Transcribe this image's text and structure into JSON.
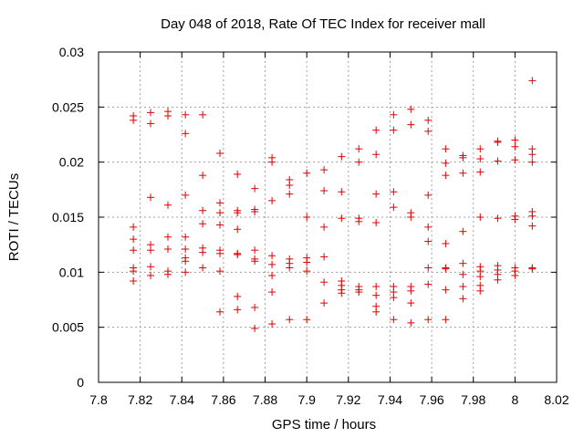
{
  "chart_data": {
    "type": "scatter",
    "title": "Day 048 of 2018, Rate Of TEC Index for receiver mall",
    "xlabel": "GPS time / hours",
    "ylabel": "ROTI / TECUs",
    "xlim": [
      7.8,
      8.02
    ],
    "ylim": [
      0,
      0.03
    ],
    "xticks": [
      7.8,
      7.82,
      7.84,
      7.86,
      7.88,
      7.9,
      7.92,
      7.94,
      7.96,
      7.98,
      8,
      8.02
    ],
    "xtick_labels": [
      "7.8",
      "7.82",
      "7.84",
      "7.86",
      "7.88",
      "7.9",
      "7.92",
      "7.94",
      "7.96",
      "7.98",
      "8",
      "8.02"
    ],
    "yticks": [
      0,
      0.005,
      0.01,
      0.015,
      0.02,
      0.025,
      0.03
    ],
    "ytick_labels": [
      "0",
      "0.005",
      "0.01",
      "0.015",
      "0.02",
      "0.025",
      "0.03"
    ],
    "grid": true,
    "marker": "+",
    "color": "#e00000",
    "series": [
      {
        "name": "ROTI",
        "points": [
          [
            7.8167,
            0.0242
          ],
          [
            7.8167,
            0.0238
          ],
          [
            7.8167,
            0.0141
          ],
          [
            7.8167,
            0.013
          ],
          [
            7.8167,
            0.012
          ],
          [
            7.8167,
            0.0104
          ],
          [
            7.8167,
            0.0101
          ],
          [
            7.8167,
            0.0092
          ],
          [
            7.825,
            0.0245
          ],
          [
            7.825,
            0.0235
          ],
          [
            7.825,
            0.0168
          ],
          [
            7.825,
            0.0125
          ],
          [
            7.825,
            0.012
          ],
          [
            7.825,
            0.0105
          ],
          [
            7.825,
            0.0097
          ],
          [
            7.8333,
            0.0246
          ],
          [
            7.8333,
            0.0242
          ],
          [
            7.8333,
            0.0161
          ],
          [
            7.8333,
            0.0132
          ],
          [
            7.8333,
            0.0121
          ],
          [
            7.8333,
            0.0101
          ],
          [
            7.8333,
            0.0098
          ],
          [
            7.8417,
            0.0243
          ],
          [
            7.8417,
            0.0226
          ],
          [
            7.8417,
            0.017
          ],
          [
            7.8417,
            0.0132
          ],
          [
            7.8417,
            0.0121
          ],
          [
            7.8417,
            0.0113
          ],
          [
            7.8417,
            0.011
          ],
          [
            7.8417,
            0.01
          ],
          [
            7.85,
            0.0243
          ],
          [
            7.85,
            0.0188
          ],
          [
            7.85,
            0.0156
          ],
          [
            7.85,
            0.0144
          ],
          [
            7.85,
            0.0122
          ],
          [
            7.85,
            0.0118
          ],
          [
            7.85,
            0.0104
          ],
          [
            7.8583,
            0.0208
          ],
          [
            7.8583,
            0.0163
          ],
          [
            7.8583,
            0.0154
          ],
          [
            7.8583,
            0.0143
          ],
          [
            7.8583,
            0.012
          ],
          [
            7.8583,
            0.0117
          ],
          [
            7.8583,
            0.0101
          ],
          [
            7.8583,
            0.0064
          ],
          [
            7.8667,
            0.0189
          ],
          [
            7.8667,
            0.0156
          ],
          [
            7.8667,
            0.0154
          ],
          [
            7.8667,
            0.0139
          ],
          [
            7.8667,
            0.0117
          ],
          [
            7.8667,
            0.0116
          ],
          [
            7.8667,
            0.0078
          ],
          [
            7.8667,
            0.0066
          ],
          [
            7.875,
            0.0176
          ],
          [
            7.875,
            0.0157
          ],
          [
            7.875,
            0.0155
          ],
          [
            7.875,
            0.012
          ],
          [
            7.875,
            0.0112
          ],
          [
            7.875,
            0.011
          ],
          [
            7.875,
            0.0068
          ],
          [
            7.875,
            0.0049
          ],
          [
            7.8833,
            0.0204
          ],
          [
            7.8833,
            0.02
          ],
          [
            7.8833,
            0.0165
          ],
          [
            7.8833,
            0.0115
          ],
          [
            7.8833,
            0.0107
          ],
          [
            7.8833,
            0.0097
          ],
          [
            7.8833,
            0.0082
          ],
          [
            7.8833,
            0.0053
          ],
          [
            7.8917,
            0.0184
          ],
          [
            7.8917,
            0.0179
          ],
          [
            7.8917,
            0.0171
          ],
          [
            7.8917,
            0.0112
          ],
          [
            7.8917,
            0.0108
          ],
          [
            7.8917,
            0.0104
          ],
          [
            7.8917,
            0.0057
          ],
          [
            7.9,
            0.019
          ],
          [
            7.9,
            0.015
          ],
          [
            7.9,
            0.0113
          ],
          [
            7.9,
            0.0109
          ],
          [
            7.9,
            0.0101
          ],
          [
            7.9,
            0.0057
          ],
          [
            7.9083,
            0.0193
          ],
          [
            7.9083,
            0.0174
          ],
          [
            7.9083,
            0.0141
          ],
          [
            7.9083,
            0.0114
          ],
          [
            7.9083,
            0.0091
          ],
          [
            7.9083,
            0.0072
          ],
          [
            7.9167,
            0.0205
          ],
          [
            7.9167,
            0.0173
          ],
          [
            7.9167,
            0.0149
          ],
          [
            7.9167,
            0.0092
          ],
          [
            7.9167,
            0.0088
          ],
          [
            7.9167,
            0.0084
          ],
          [
            7.9167,
            0.0081
          ],
          [
            7.925,
            0.0212
          ],
          [
            7.925,
            0.02
          ],
          [
            7.925,
            0.0149
          ],
          [
            7.925,
            0.0146
          ],
          [
            7.925,
            0.0087
          ],
          [
            7.925,
            0.0084
          ],
          [
            7.925,
            0.0082
          ],
          [
            7.9333,
            0.0229
          ],
          [
            7.9333,
            0.0207
          ],
          [
            7.9333,
            0.0171
          ],
          [
            7.9333,
            0.0145
          ],
          [
            7.9333,
            0.0087
          ],
          [
            7.9333,
            0.0079
          ],
          [
            7.9333,
            0.0069
          ],
          [
            7.9333,
            0.0064
          ],
          [
            7.9417,
            0.0243
          ],
          [
            7.9417,
            0.0229
          ],
          [
            7.9417,
            0.0173
          ],
          [
            7.9417,
            0.0159
          ],
          [
            7.9417,
            0.0087
          ],
          [
            7.9417,
            0.0082
          ],
          [
            7.9417,
            0.0077
          ],
          [
            7.9417,
            0.0057
          ],
          [
            7.95,
            0.0248
          ],
          [
            7.95,
            0.0234
          ],
          [
            7.95,
            0.0154
          ],
          [
            7.95,
            0.015
          ],
          [
            7.95,
            0.0087
          ],
          [
            7.95,
            0.0083
          ],
          [
            7.95,
            0.0072
          ],
          [
            7.95,
            0.0054
          ],
          [
            7.9583,
            0.0238
          ],
          [
            7.9583,
            0.0228
          ],
          [
            7.9583,
            0.017
          ],
          [
            7.9583,
            0.0141
          ],
          [
            7.9583,
            0.0128
          ],
          [
            7.9583,
            0.0104
          ],
          [
            7.9583,
            0.0089
          ],
          [
            7.9583,
            0.0057
          ],
          [
            7.9667,
            0.0212
          ],
          [
            7.9667,
            0.0199
          ],
          [
            7.9667,
            0.0188
          ],
          [
            7.9667,
            0.0126
          ],
          [
            7.9667,
            0.0104
          ],
          [
            7.9667,
            0.0103
          ],
          [
            7.9667,
            0.0084
          ],
          [
            7.9667,
            0.0057
          ],
          [
            7.975,
            0.0206
          ],
          [
            7.975,
            0.0204
          ],
          [
            7.975,
            0.019
          ],
          [
            7.975,
            0.0137
          ],
          [
            7.975,
            0.0108
          ],
          [
            7.975,
            0.0098
          ],
          [
            7.975,
            0.0087
          ],
          [
            7.975,
            0.0076
          ],
          [
            7.9833,
            0.0212
          ],
          [
            7.9833,
            0.0203
          ],
          [
            7.9833,
            0.0191
          ],
          [
            7.9833,
            0.015
          ],
          [
            7.9833,
            0.0105
          ],
          [
            7.9833,
            0.0101
          ],
          [
            7.9833,
            0.0096
          ],
          [
            7.9833,
            0.0088
          ],
          [
            7.9833,
            0.0083
          ],
          [
            7.9917,
            0.0219
          ],
          [
            7.9917,
            0.0218
          ],
          [
            7.9917,
            0.0201
          ],
          [
            7.9917,
            0.0149
          ],
          [
            7.9917,
            0.0106
          ],
          [
            7.9917,
            0.0102
          ],
          [
            7.9917,
            0.0098
          ],
          [
            7.9917,
            0.0093
          ],
          [
            8.0,
            0.022
          ],
          [
            8.0,
            0.0214
          ],
          [
            8.0,
            0.0202
          ],
          [
            8.0,
            0.0151
          ],
          [
            8.0,
            0.0148
          ],
          [
            8.0,
            0.0104
          ],
          [
            8.0,
            0.0101
          ],
          [
            8.0,
            0.0097
          ],
          [
            8.0083,
            0.0274
          ],
          [
            8.0083,
            0.0212
          ],
          [
            8.0083,
            0.0207
          ],
          [
            8.0083,
            0.02
          ],
          [
            8.0083,
            0.0155
          ],
          [
            8.0083,
            0.0151
          ],
          [
            8.0083,
            0.0142
          ],
          [
            8.0083,
            0.0104
          ],
          [
            8.0083,
            0.0103
          ]
        ]
      }
    ]
  }
}
